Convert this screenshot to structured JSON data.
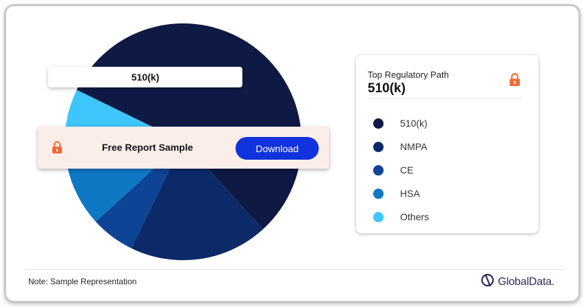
{
  "chart_data": {
    "type": "pie",
    "title": "",
    "slices": [
      {
        "label": "510(k)",
        "value": 56,
        "color": "#0e1a44"
      },
      {
        "label": "NMPA",
        "value": 19,
        "color": "#0c2a68"
      },
      {
        "label": "CE",
        "value": 6,
        "color": "#0d4495"
      },
      {
        "label": "HSA",
        "value": 10,
        "color": "#0e78c4"
      },
      {
        "label": "Others",
        "value": 9,
        "color": "#3ec5fb"
      }
    ]
  },
  "overlay": {
    "highlight_label": "510(k)"
  },
  "banner": {
    "text": "Free Report Sample",
    "button": "Download"
  },
  "legend": {
    "subtitle": "Top Regulatory Path",
    "value": "510(k)",
    "items": [
      {
        "label": "510(k)",
        "color": "#0e1a44"
      },
      {
        "label": "NMPA",
        "color": "#0c2a68"
      },
      {
        "label": "CE",
        "color": "#0d4495"
      },
      {
        "label": "HSA",
        "color": "#0e78c4"
      },
      {
        "label": "Others",
        "color": "#3ec5fb"
      }
    ]
  },
  "footer": {
    "note": "Note: Sample Representation",
    "brand": "GlobalData."
  },
  "icons": {
    "lock": "lock-icon",
    "brand": "globaldata-logo-icon"
  },
  "colors": {
    "accent": "#1133dd",
    "lock": "#f26a35",
    "banner_bg": "#fbeee9"
  }
}
